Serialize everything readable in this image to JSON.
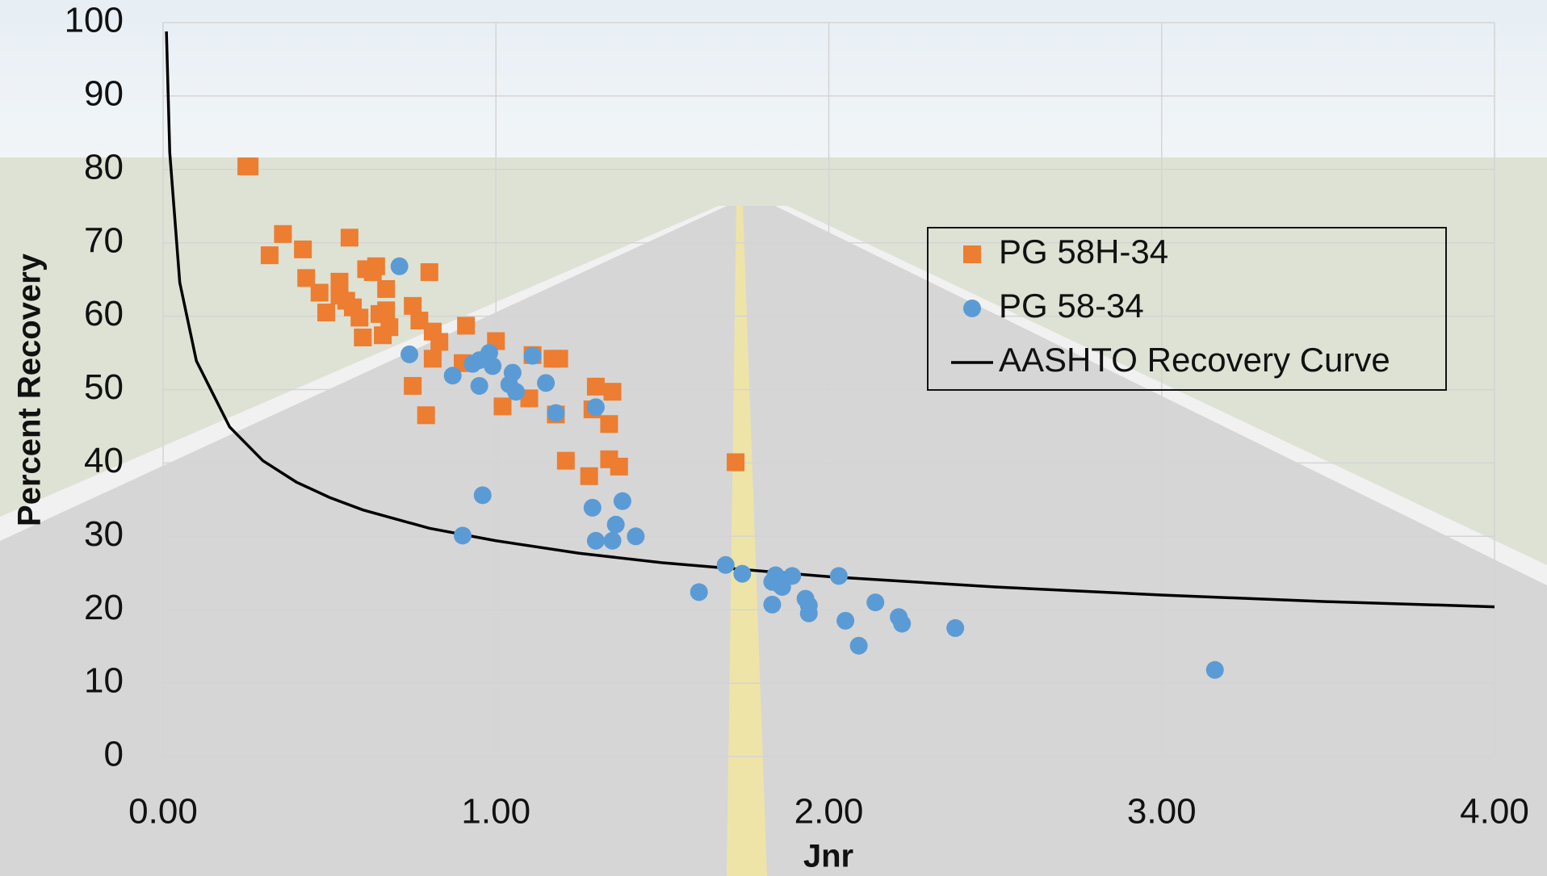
{
  "chart_data": {
    "type": "scatter",
    "x_label": "Jnr",
    "y_label": "Percent Recovery",
    "xlim": [
      0,
      4
    ],
    "ylim": [
      0,
      100
    ],
    "xticks": [
      {
        "value": 0,
        "label": "0.00"
      },
      {
        "value": 1,
        "label": "1.00"
      },
      {
        "value": 2,
        "label": "2.00"
      },
      {
        "value": 3,
        "label": "3.00"
      },
      {
        "value": 4,
        "label": "4.00"
      }
    ],
    "yticks": [
      0,
      10,
      20,
      30,
      40,
      50,
      60,
      70,
      80,
      90,
      100
    ],
    "grid": true,
    "legend": "upper-right",
    "series": [
      {
        "name": "PG 58H-34",
        "type": "scatter",
        "marker": "square",
        "color": "#ED7D31",
        "x": [
          0.25,
          0.26,
          0.36,
          0.32,
          0.42,
          0.56,
          0.43,
          0.47,
          0.49,
          0.53,
          0.53,
          0.55,
          0.57,
          0.59,
          0.6,
          0.61,
          0.63,
          0.64,
          0.65,
          0.66,
          0.67,
          0.67,
          0.68,
          0.75,
          0.77,
          0.8,
          0.75,
          0.79,
          0.81,
          0.83,
          0.81,
          0.91,
          0.9,
          1.0,
          1.02,
          1.1,
          1.11,
          1.17,
          1.19,
          1.18,
          1.21,
          1.28,
          1.3,
          1.29,
          1.34,
          1.34,
          1.35,
          1.37,
          1.72
        ],
        "values": [
          80.4,
          80.4,
          71.2,
          68.3,
          69.1,
          70.7,
          65.2,
          63.2,
          60.5,
          64.7,
          62.8,
          62.1,
          61.2,
          59.8,
          57.1,
          66.4,
          66.0,
          66.8,
          60.3,
          57.4,
          63.7,
          60.8,
          58.5,
          61.4,
          59.4,
          66.0,
          50.5,
          46.5,
          57.9,
          56.5,
          54.2,
          58.7,
          53.6,
          56.6,
          47.7,
          48.8,
          54.7,
          54.2,
          54.2,
          46.6,
          40.3,
          38.2,
          50.4,
          47.3,
          45.3,
          40.5,
          49.7,
          39.5,
          40.1
        ]
      },
      {
        "name": "PG 58-34",
        "type": "scatter",
        "marker": "circle",
        "color": "#5B9BD5",
        "x": [
          0.71,
          0.74,
          0.87,
          0.9,
          0.96,
          0.95,
          0.95,
          0.93,
          0.98,
          0.99,
          1.05,
          1.04,
          1.06,
          1.11,
          1.15,
          1.18,
          1.29,
          1.3,
          1.3,
          1.35,
          1.36,
          1.38,
          1.42,
          1.61,
          1.69,
          1.74,
          1.83,
          1.83,
          1.84,
          1.85,
          1.86,
          1.89,
          1.93,
          1.94,
          1.94,
          2.03,
          2.05,
          2.09,
          2.14,
          2.21,
          2.22,
          2.38,
          3.16
        ],
        "values": [
          66.8,
          54.8,
          51.9,
          30.1,
          35.6,
          50.5,
          54.0,
          53.5,
          55.0,
          53.2,
          52.3,
          50.7,
          49.7,
          54.6,
          50.9,
          46.8,
          33.9,
          47.6,
          29.4,
          29.4,
          31.6,
          34.8,
          30.0,
          22.4,
          26.1,
          24.9,
          23.8,
          20.7,
          24.7,
          23.5,
          23.1,
          24.6,
          21.5,
          20.6,
          19.5,
          24.6,
          18.5,
          15.1,
          21.0,
          19.0,
          18.1,
          17.5,
          11.8
        ]
      },
      {
        "name": "AASHTO Recovery Curve",
        "type": "line",
        "color": "#000000",
        "x": [
          0.01,
          0.02,
          0.05,
          0.1,
          0.2,
          0.3,
          0.4,
          0.5,
          0.6,
          0.8,
          1.0,
          1.25,
          1.5,
          2.0,
          2.5,
          3.0,
          3.5,
          4.0
        ],
        "values": [
          98.8,
          82.3,
          64.6,
          53.9,
          44.9,
          40.3,
          37.4,
          35.3,
          33.6,
          31.1,
          29.4,
          27.7,
          26.4,
          24.5,
          23.1,
          22.0,
          21.1,
          20.4
        ]
      }
    ]
  }
}
